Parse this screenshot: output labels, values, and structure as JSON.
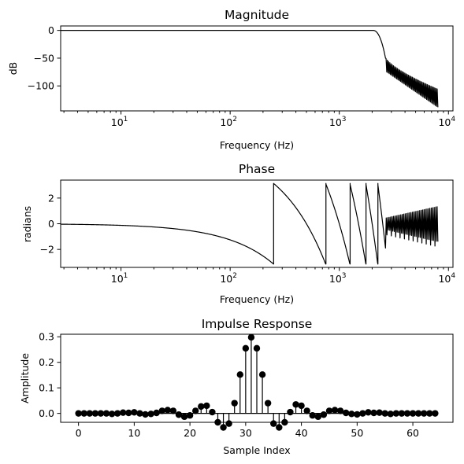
{
  "chart_data": [
    {
      "type": "line",
      "title": "Magnitude",
      "xlabel": "Frequency (Hz)",
      "ylabel": "dB",
      "xscale": "log",
      "xlim": [
        2.8,
        11000
      ],
      "ylim": [
        -145,
        8
      ],
      "yticks": [
        0,
        -50,
        -100
      ],
      "ytick_labels": [
        "0",
        "−50",
        "−100"
      ],
      "xticks": [
        10,
        100,
        1000,
        10000
      ],
      "xtick_labels": [
        {
          "base": "10",
          "exp": "1"
        },
        {
          "base": "10",
          "exp": "2"
        },
        {
          "base": "10",
          "exp": "3"
        },
        {
          "base": "10",
          "exp": "4"
        }
      ],
      "passband_level_db": 0,
      "cutoff_hz": 2050,
      "stopband_start_hz": 2650,
      "stopband_end_hz": 8000,
      "stopband_floor_db": [
        -75,
        -140
      ],
      "stopband_ripple_count": 42
    },
    {
      "type": "line",
      "title": "Phase",
      "xlabel": "Frequency (Hz)",
      "ylabel": "radians",
      "xscale": "log",
      "xlim": [
        2.8,
        11000
      ],
      "ylim": [
        -3.4,
        3.4
      ],
      "yticks": [
        2,
        0,
        -2
      ],
      "ytick_labels": [
        "2",
        "0",
        "−2"
      ],
      "xticks": [
        10,
        100,
        1000,
        10000
      ],
      "xtick_labels": [
        {
          "base": "10",
          "exp": "1"
        },
        {
          "base": "10",
          "exp": "2"
        },
        {
          "base": "10",
          "exp": "3"
        },
        {
          "base": "10",
          "exp": "4"
        }
      ],
      "phase_wrap_frequencies_hz": [
        250,
        750,
        1250,
        1750,
        2250
      ],
      "linear_phase_rad_per_hz": -0.01257,
      "stopband_oscillation_start_hz": 2650,
      "stopband_oscillation_count": 36
    },
    {
      "type": "stem",
      "title": "Impulse Response",
      "xlabel": "Sample Index",
      "ylabel": "Amplitude",
      "xlim": [
        -3.2,
        67.2
      ],
      "ylim": [
        -0.035,
        0.31
      ],
      "xticks": [
        0,
        10,
        20,
        30,
        40,
        50,
        60
      ],
      "yticks": [
        0.0,
        0.1,
        0.2,
        0.3
      ],
      "ytick_labels": [
        "0.0",
        "0.1",
        "0.2",
        "0.3"
      ],
      "x": [
        0,
        1,
        2,
        3,
        4,
        5,
        6,
        7,
        8,
        9,
        10,
        11,
        12,
        13,
        14,
        15,
        16,
        17,
        18,
        19,
        20,
        21,
        22,
        23,
        24,
        25,
        26,
        27,
        28,
        29,
        30,
        31,
        32,
        33,
        34,
        35,
        36,
        37,
        38,
        39,
        40,
        41,
        42,
        43,
        44,
        45,
        46,
        47,
        48,
        49,
        50,
        51,
        52,
        53,
        54,
        55,
        56,
        57,
        58,
        59,
        60,
        61,
        62,
        63,
        64
      ],
      "values": [
        0.0,
        0.0,
        0.0,
        0.0,
        0.0,
        0.0,
        -0.002,
        0.0,
        0.003,
        0.002,
        0.004,
        0.0,
        -0.004,
        -0.002,
        0.002,
        0.01,
        0.013,
        0.01,
        -0.005,
        -0.013,
        -0.008,
        0.01,
        0.027,
        0.03,
        0.005,
        -0.035,
        -0.055,
        -0.04,
        0.04,
        0.152,
        0.255,
        0.298,
        0.255,
        0.152,
        0.04,
        -0.04,
        -0.055,
        -0.035,
        0.005,
        0.035,
        0.03,
        0.01,
        -0.008,
        -0.013,
        -0.005,
        0.01,
        0.013,
        0.01,
        0.002,
        -0.002,
        -0.004,
        0.0,
        0.004,
        0.002,
        0.003,
        0.0,
        -0.002,
        0.0,
        0.0,
        0.0,
        0.0,
        0.0,
        0.0,
        0.0,
        0.0
      ]
    }
  ]
}
